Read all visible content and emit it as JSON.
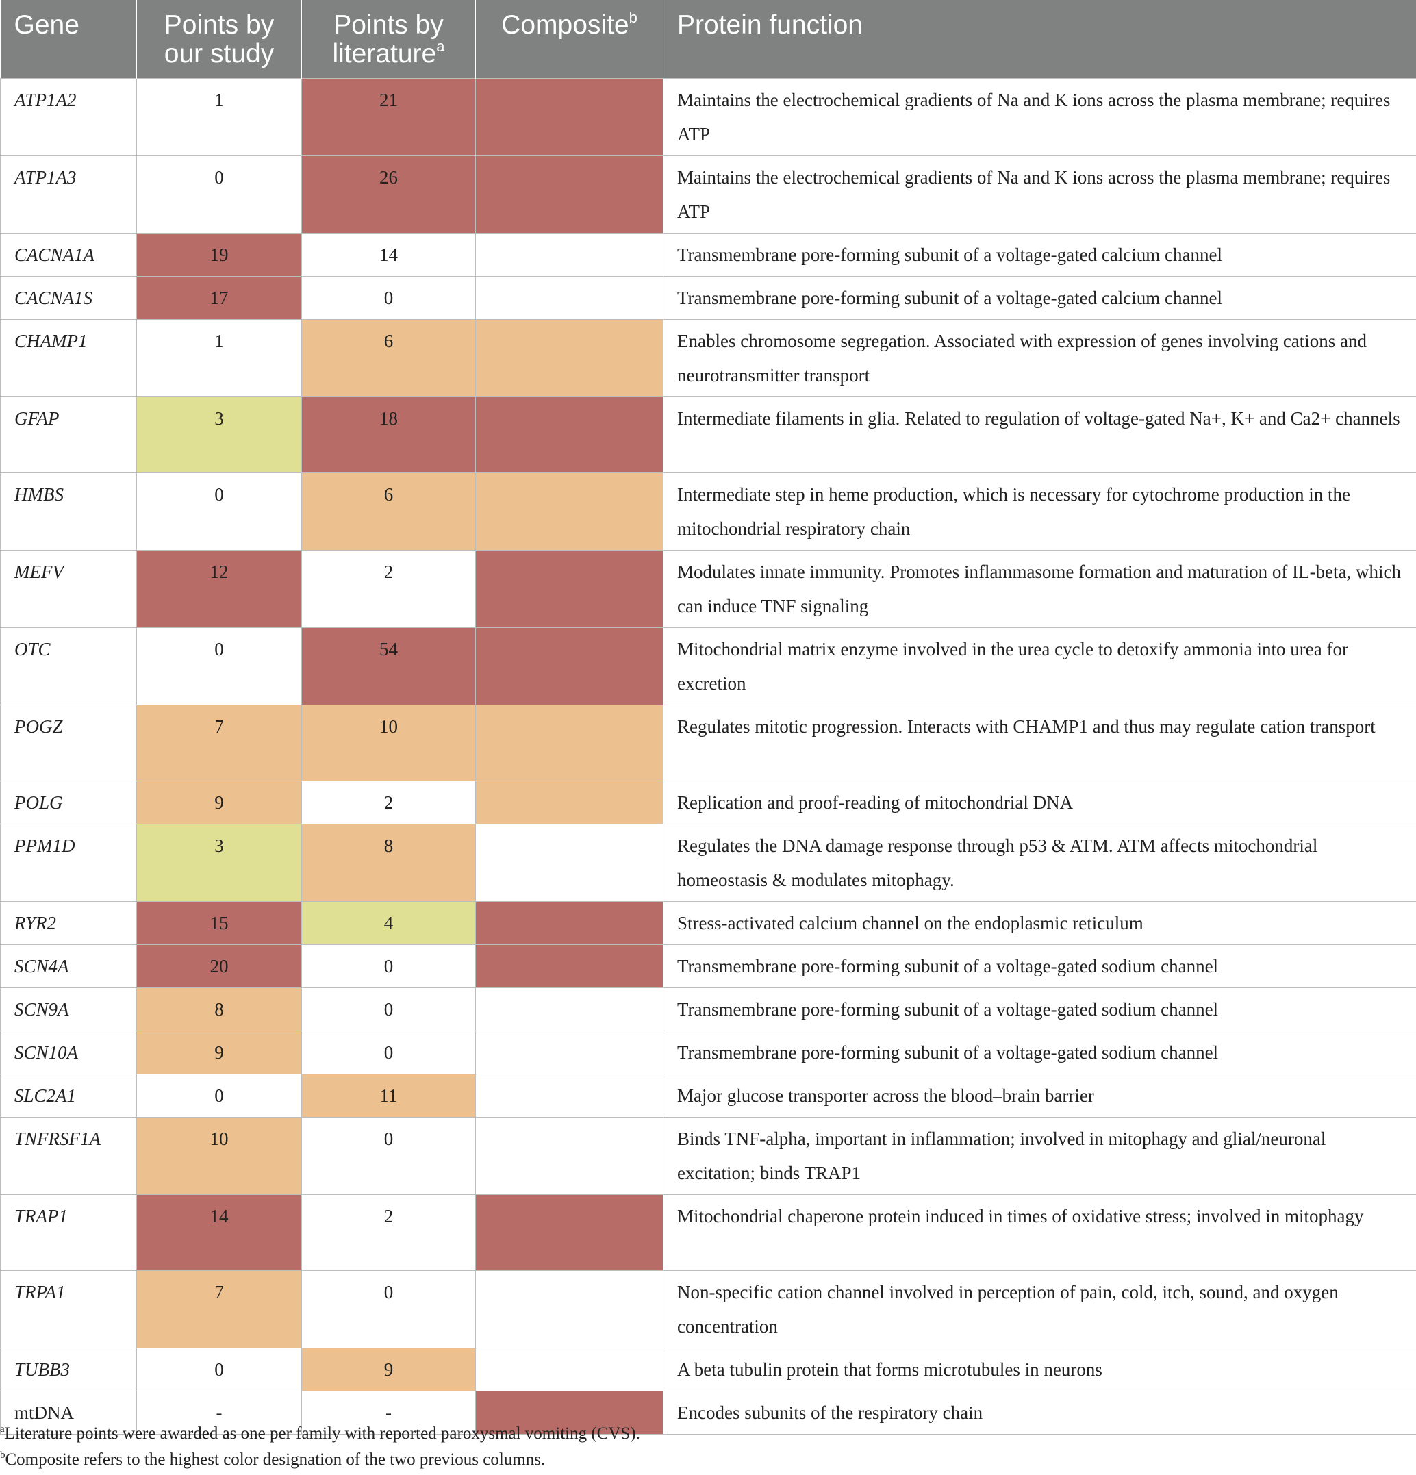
{
  "colors": {
    "header_bg": "#808281",
    "red": "#b76c67",
    "orange": "#ecc18f",
    "yellow": "#e0e094",
    "highlight_text": "#e01818"
  },
  "table": {
    "headers": {
      "gene": "Gene",
      "our_line1": "Points by",
      "our_line2": "our study",
      "lit_line1": "Points by",
      "lit_line2": "literature",
      "lit_sup": "a",
      "composite": "Composite",
      "composite_sup": "b",
      "function": "Protein function"
    },
    "rows": [
      {
        "gene": "ATP1A2",
        "our": "1",
        "lit": "21",
        "function": "Maintains the electrochemical gradients of Na and K ions across the plasma membrane; requires ATP"
      },
      {
        "gene": "ATP1A3",
        "our": "0",
        "lit": "26",
        "function": "Maintains the electrochemical gradients of Na and K ions across the plasma membrane; requires ATP"
      },
      {
        "gene": "CACNA1A",
        "our": "19",
        "lit": "14",
        "function": "Transmembrane pore-forming subunit of a voltage-gated calcium channel"
      },
      {
        "gene": "CACNA1S",
        "our": "17",
        "lit": "0",
        "function": "Transmembrane pore-forming subunit of a voltage-gated calcium channel"
      },
      {
        "gene": "CHAMP1",
        "our": "1",
        "lit": "6",
        "function": "Enables chromosome segregation. Associated with expression of genes involving cations and neurotransmitter transport"
      },
      {
        "gene": "GFAP",
        "our": "3",
        "lit": "18",
        "function": "Intermediate filaments in glia. Related to regulation of voltage-gated Na+, K+ and Ca2+ channels"
      },
      {
        "gene": "HMBS",
        "our": "0",
        "lit": "6",
        "function": "Intermediate step in heme production, which is necessary for cytochrome production in the mitochondrial respiratory chain"
      },
      {
        "gene": "MEFV",
        "our": "12",
        "lit": "2",
        "function": "Modulates innate immunity. Promotes inflammasome formation and maturation of IL-beta, which can induce TNF signaling"
      },
      {
        "gene": "OTC",
        "our": "0",
        "lit": "54",
        "function": "Mitochondrial matrix enzyme involved in the urea cycle to detoxify ammonia into urea for excretion"
      },
      {
        "gene": "POGZ",
        "our": "7",
        "lit": "10",
        "function": "Regulates mitotic progression. Interacts with CHAMP1 and thus may regulate cation transport"
      },
      {
        "gene": "POLG",
        "our": "9",
        "lit": "2",
        "function": "Replication and proof-reading of mitochondrial DNA"
      },
      {
        "gene": "PPM1D",
        "our": "3",
        "lit": "8",
        "function": "Regulates the DNA damage response through p53 & ATM. ATM affects mitochondrial homeostasis & modulates mitophagy."
      },
      {
        "gene": "RYR2",
        "our": "15",
        "lit": "4",
        "function": "Stress-activated calcium channel on the endoplasmic reticulum"
      },
      {
        "gene": "SCN4A",
        "our": "20",
        "lit": "0",
        "function": "Transmembrane pore-forming subunit of a voltage-gated sodium channel"
      },
      {
        "gene": "SCN9A",
        "our": "8",
        "lit": "0",
        "function": "Transmembrane pore-forming subunit of a voltage-gated sodium channel"
      },
      {
        "gene": "SCN10A",
        "our": "9",
        "lit": "0",
        "function": "Transmembrane pore-forming subunit of a voltage-gated sodium channel"
      },
      {
        "gene": "SLC2A1",
        "our": "0",
        "lit": "11",
        "function": "Major glucose transporter across the blood–brain barrier"
      },
      {
        "gene": "TNFRSF1A",
        "our": "10",
        "lit": "0",
        "function": "Binds TNF-alpha, important in inflammation; involved in mitophagy and glial/neuronal excitation; binds TRAP1"
      },
      {
        "gene": "TRAP1",
        "our": "14",
        "lit": "2",
        "function": "Mitochondrial chaperone protein induced in times of oxidative stress; involved in mitophagy"
      },
      {
        "gene": "TRPA1",
        "our": "7",
        "lit": "0",
        "function": "Non-specific cation channel involved in perception of pain, cold, itch, sound, and oxygen concentration"
      },
      {
        "gene": "TUBB3",
        "our": "0",
        "lit": "9",
        "function": "A beta tubulin protein that forms microtubules in neurons"
      },
      {
        "gene": "mtDNA",
        "our": "-",
        "lit": "-",
        "function": "Encodes subunits of the respiratory chain"
      }
    ]
  },
  "footnotes": {
    "a_mark": "a",
    "a_text": "Literature points were awarded as one per family with reported paroxysmal vomiting (CVS).",
    "b_mark": "b",
    "b_text": "Composite refers to the highest color designation of the two previous columns."
  }
}
